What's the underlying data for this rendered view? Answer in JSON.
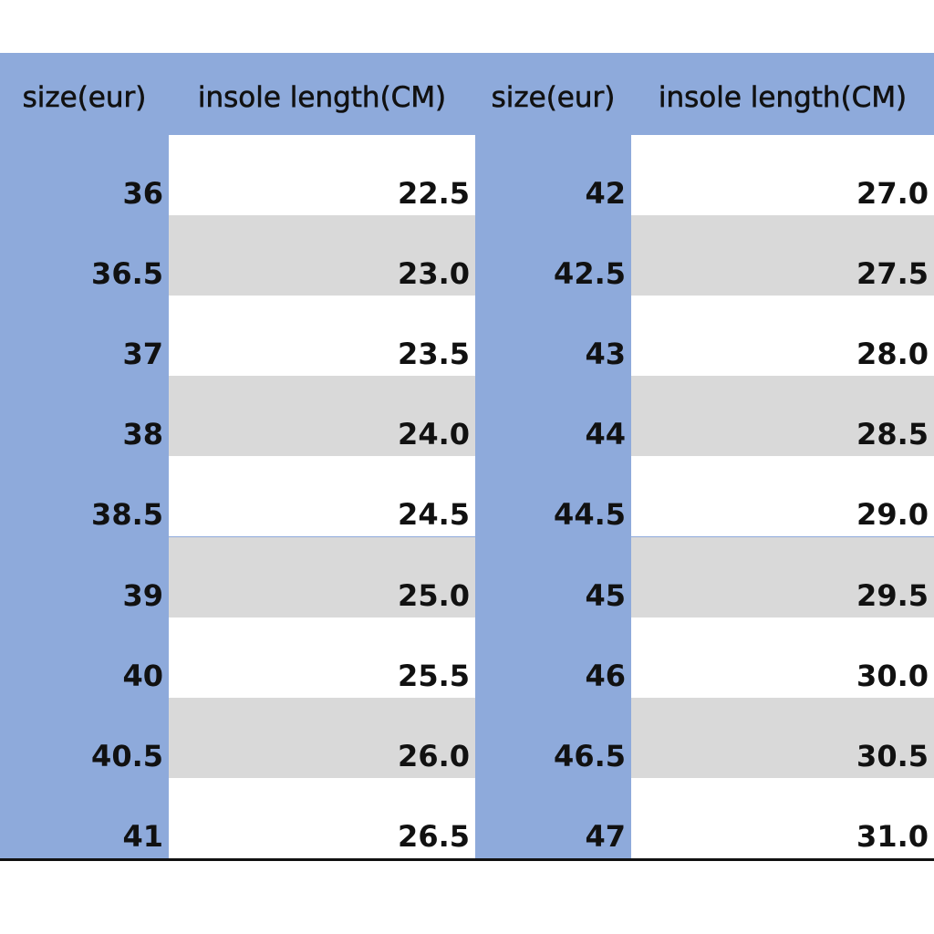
{
  "table": {
    "header": [
      "size(eur)",
      "insole length(CM)",
      "size(eur)",
      "insole length(CM)"
    ],
    "rows": [
      [
        "36",
        "22.5",
        "42",
        "27.0"
      ],
      [
        "36.5",
        "23.0",
        "42.5",
        "27.5"
      ],
      [
        "37",
        "23.5",
        "43",
        "28.0"
      ],
      [
        "38",
        "24.0",
        "44",
        "28.5"
      ],
      [
        "38.5",
        "24.5",
        "44.5",
        "29.0"
      ],
      [
        "39",
        "25.0",
        "45",
        "29.5"
      ],
      [
        "40",
        "25.5",
        "46",
        "30.0"
      ],
      [
        "40.5",
        "26.0",
        "46.5",
        "30.5"
      ],
      [
        "41",
        "26.5",
        "47",
        "31.0"
      ]
    ]
  }
}
